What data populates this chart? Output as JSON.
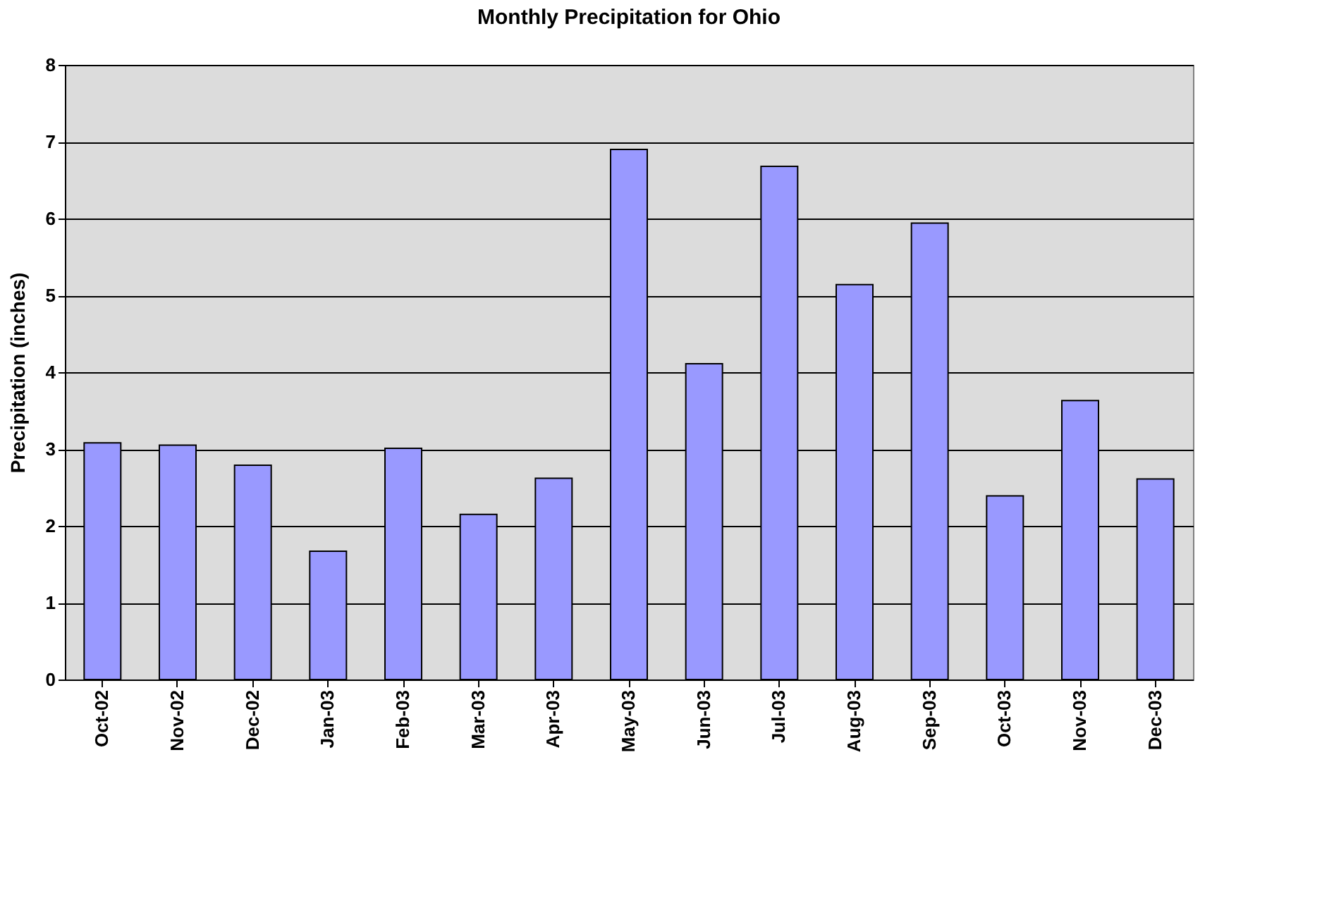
{
  "chart_data": {
    "type": "bar",
    "title": "Monthly Precipitation for Ohio",
    "ylabel": "Precipitation (inches)",
    "categories": [
      "Oct-02",
      "Nov-02",
      "Dec-02",
      "Jan-03",
      "Feb-03",
      "Mar-03",
      "Apr-03",
      "May-03",
      "Jun-03",
      "Jul-03",
      "Aug-03",
      "Sep-03",
      "Oct-03",
      "Nov-03",
      "Dec-03"
    ],
    "series": [
      {
        "color": "#9999ff",
        "values": [
          3.08,
          3.05,
          2.79,
          1.67,
          3.01,
          2.15,
          2.62,
          6.9,
          4.11,
          6.68,
          5.14,
          5.94,
          2.39,
          3.63,
          2.61
        ]
      }
    ],
    "ylim": [
      0,
      8
    ],
    "yticks": [
      0,
      1,
      2,
      3,
      4,
      5,
      6,
      7,
      8
    ],
    "grid": "y"
  }
}
